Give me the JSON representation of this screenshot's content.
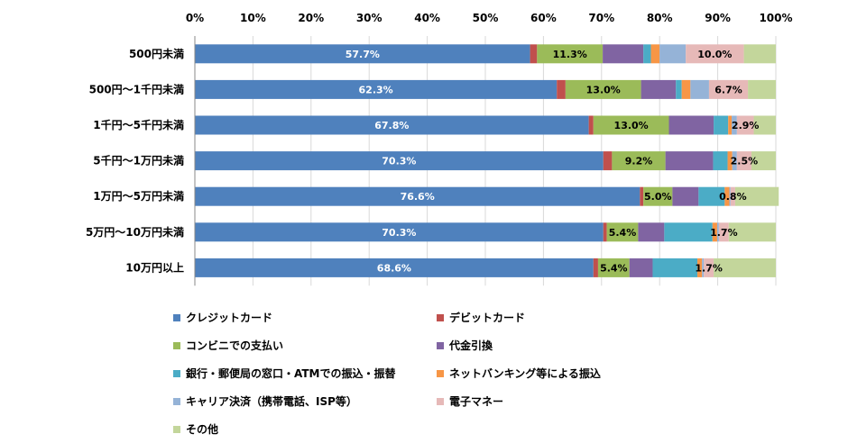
{
  "chart_data": {
    "type": "bar",
    "orientation": "horizontal",
    "stacked": true,
    "xlim": [
      0,
      100
    ],
    "x_ticks": [
      "0%",
      "10%",
      "20%",
      "30%",
      "40%",
      "50%",
      "60%",
      "70%",
      "80%",
      "90%",
      "100%"
    ],
    "grid": true,
    "legend_position": "bottom",
    "categories": [
      "500円未満",
      "500円～1千円未満",
      "1千円～5千円未満",
      "5千円～1万円未満",
      "1万円～5万円未満",
      "5万円～10万円未満",
      "10万円以上"
    ],
    "series": [
      {
        "name": "クレジットカード",
        "color": "#4F81BD",
        "values": [
          57.7,
          62.3,
          67.8,
          70.3,
          76.6,
          70.3,
          68.6
        ]
      },
      {
        "name": "デビットカード",
        "color": "#C0504D",
        "values": [
          1.2,
          1.5,
          0.8,
          1.5,
          0.6,
          0.6,
          0.8
        ]
      },
      {
        "name": "コンビニでの支払い",
        "color": "#9BBB59",
        "values": [
          11.3,
          13.0,
          13.0,
          9.2,
          5.0,
          5.4,
          5.4
        ]
      },
      {
        "name": "代金引換",
        "color": "#8064A2",
        "values": [
          7.0,
          6.0,
          7.7,
          8.2,
          4.5,
          4.5,
          4.0
        ]
      },
      {
        "name": "銀行・郵便局の窓口・ATMでの振込・振替",
        "color": "#4BACC6",
        "values": [
          1.3,
          1.0,
          2.5,
          2.5,
          4.5,
          8.3,
          7.7
        ]
      },
      {
        "name": "ネットバンキング等による振込",
        "color": "#F79646",
        "values": [
          1.5,
          1.5,
          0.6,
          0.8,
          0.8,
          0.8,
          0.8
        ]
      },
      {
        "name": "キャリア決済（携帯電話、ISP等）",
        "color": "#95B3D7",
        "values": [
          4.5,
          3.2,
          0.9,
          0.8,
          0.2,
          0.3,
          0.3
        ]
      },
      {
        "name": "電子マネー",
        "color": "#E6B9B8",
        "values": [
          10.0,
          6.7,
          2.9,
          2.5,
          0.8,
          1.7,
          1.7
        ]
      },
      {
        "name": "その他",
        "color": "#C3D69B",
        "values": [
          5.5,
          4.8,
          3.8,
          4.2,
          7.5,
          8.1,
          10.7
        ]
      }
    ],
    "labels": [
      [
        {
          "s": 0,
          "text": "57.7%"
        },
        {
          "s": 2,
          "text": "11.3%"
        },
        {
          "s": 7,
          "text": "10.0%"
        }
      ],
      [
        {
          "s": 0,
          "text": "62.3%"
        },
        {
          "s": 2,
          "text": "13.0%"
        },
        {
          "s": 7,
          "text": "6.7%"
        }
      ],
      [
        {
          "s": 0,
          "text": "67.8%"
        },
        {
          "s": 2,
          "text": "13.0%"
        },
        {
          "s": 7,
          "text": "2.9%"
        }
      ],
      [
        {
          "s": 0,
          "text": "70.3%"
        },
        {
          "s": 2,
          "text": "9.2%"
        },
        {
          "s": 7,
          "text": "2.5%"
        }
      ],
      [
        {
          "s": 0,
          "text": "76.6%"
        },
        {
          "s": 2,
          "text": "5.0%"
        },
        {
          "s": 7,
          "text": "0.8%"
        }
      ],
      [
        {
          "s": 0,
          "text": "70.3%"
        },
        {
          "s": 2,
          "text": "5.4%"
        },
        {
          "s": 7,
          "text": "1.7%"
        }
      ],
      [
        {
          "s": 0,
          "text": "68.6%"
        },
        {
          "s": 2,
          "text": "5.4%"
        },
        {
          "s": 7,
          "text": "1.7%"
        }
      ]
    ]
  }
}
